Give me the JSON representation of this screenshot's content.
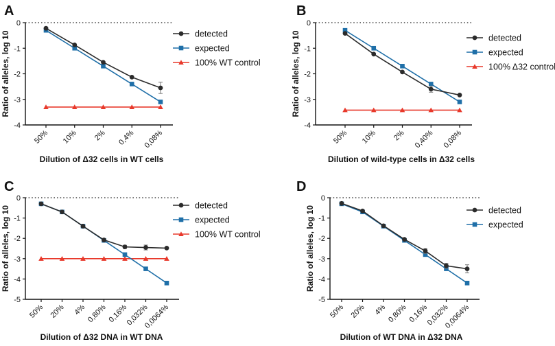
{
  "colors": {
    "detected": "#2b2b2b",
    "expected": "#1f6fa8",
    "control": "#e8392b",
    "axis": "#111111"
  },
  "chart_data": [
    {
      "panel": "A",
      "type": "line",
      "categories": [
        "50%",
        "10%",
        "2%",
        "0,4%",
        "0,08%"
      ],
      "xlabel": "Dilution of Δ32 cells in WT cells",
      "ylabel": "Ratio of alleles, log 10",
      "ylim": [
        -4,
        0
      ],
      "yticks": [
        "0",
        "-1",
        "-2",
        "-3",
        "-4"
      ],
      "reference_line": 0,
      "legend_position": "top-right",
      "series": [
        {
          "name": "detected",
          "marker": "circle",
          "values": [
            -0.22,
            -0.87,
            -1.55,
            -2.13,
            -2.55
          ],
          "errors": [
            0.04,
            0.04,
            0.04,
            0.05,
            0.22
          ]
        },
        {
          "name": "expected",
          "marker": "square",
          "values": [
            -0.3,
            -1.0,
            -1.7,
            -2.4,
            -3.1
          ]
        },
        {
          "name": "100% WT control",
          "marker": "triangle",
          "values": [
            -3.3,
            -3.3,
            -3.3,
            -3.3,
            -3.3
          ]
        }
      ]
    },
    {
      "panel": "B",
      "type": "line",
      "categories": [
        "50%",
        "10%",
        "2%",
        "0,40%",
        "0,08%"
      ],
      "xlabel": "Dilution of wild-type cells in Δ32 cells",
      "ylabel": "Ratio of alleles, log 10",
      "ylim": [
        -4,
        0
      ],
      "yticks": [
        "0",
        "-1",
        "-2",
        "-3",
        "-4"
      ],
      "reference_line": 0,
      "legend_position": "top-right",
      "series": [
        {
          "name": "detected",
          "marker": "circle",
          "values": [
            -0.42,
            -1.23,
            -1.93,
            -2.6,
            -2.83
          ],
          "errors": [
            0.04,
            0.04,
            0.04,
            0.12,
            0.05
          ]
        },
        {
          "name": "expected",
          "marker": "square",
          "values": [
            -0.3,
            -1.0,
            -1.7,
            -2.4,
            -3.1
          ]
        },
        {
          "name": "100% Δ32 control",
          "marker": "triangle",
          "values": [
            -3.42,
            -3.42,
            -3.42,
            -3.42,
            -3.42
          ]
        }
      ]
    },
    {
      "panel": "C",
      "type": "line",
      "categories": [
        "50%",
        "20%",
        "4%",
        "0,80%",
        "0,16%",
        "0,032%",
        "0,0064%"
      ],
      "xlabel": "Dilution of Δ32 DNA in WT DNA",
      "ylabel": "Ratio of alleles, log 10",
      "ylim": [
        -5,
        0
      ],
      "yticks": [
        "0",
        "-1",
        "-2",
        "-3",
        "-4",
        "-5"
      ],
      "reference_line": 0,
      "legend_position": "top-right",
      "series": [
        {
          "name": "detected",
          "marker": "circle",
          "values": [
            -0.3,
            -0.7,
            -1.4,
            -2.08,
            -2.42,
            -2.45,
            -2.48
          ],
          "errors": [
            0.04,
            0.04,
            0.04,
            0.05,
            0.08,
            0.12,
            0.04
          ]
        },
        {
          "name": "expected",
          "marker": "square",
          "values": [
            -0.3,
            -0.7,
            -1.4,
            -2.1,
            -2.8,
            -3.5,
            -4.2
          ]
        },
        {
          "name": "100% WT control",
          "marker": "triangle",
          "values": [
            -3.0,
            -3.0,
            -3.0,
            -3.0,
            -3.0,
            -3.0,
            -3.0
          ]
        }
      ]
    },
    {
      "panel": "D",
      "type": "line",
      "categories": [
        "50%",
        "20%",
        "4%",
        "0,80%",
        "0,16%",
        "0,032%",
        "0,0064%"
      ],
      "xlabel": "Dilution of WT DNA in Δ32 DNA",
      "ylabel": "Ratio of alleles, log 10",
      "ylim": [
        -5,
        0
      ],
      "yticks": [
        "0",
        "-1",
        "-2",
        "-3",
        "-4",
        "-5"
      ],
      "reference_line": 0,
      "legend_position": "top-right",
      "series": [
        {
          "name": "detected",
          "marker": "circle",
          "values": [
            -0.28,
            -0.65,
            -1.38,
            -2.05,
            -2.62,
            -3.35,
            -3.5
          ],
          "errors": [
            0.04,
            0.04,
            0.04,
            0.05,
            0.12,
            0.12,
            0.2
          ]
        },
        {
          "name": "expected",
          "marker": "square",
          "values": [
            -0.3,
            -0.7,
            -1.4,
            -2.1,
            -2.8,
            -3.5,
            -4.2
          ]
        }
      ]
    }
  ]
}
